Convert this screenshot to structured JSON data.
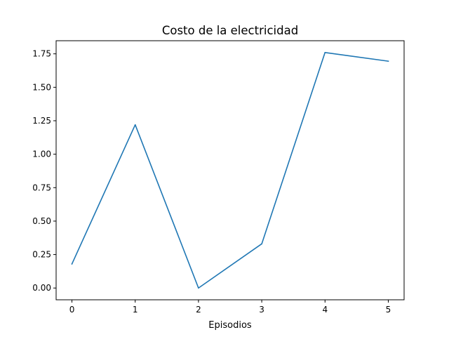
{
  "chart_data": {
    "type": "line",
    "title": "Costo de la electricidad",
    "xlabel": "Episodios",
    "ylabel": "",
    "x": [
      0,
      1,
      2,
      3,
      4,
      5
    ],
    "series": [
      {
        "values": [
          0.18,
          1.22,
          0.0,
          0.33,
          1.76,
          1.695
        ],
        "color": "#1f77b4"
      }
    ],
    "xlim": [
      -0.25,
      5.25
    ],
    "ylim": [
      -0.088,
      1.848
    ],
    "xticks": [
      0,
      1,
      2,
      3,
      4,
      5
    ],
    "xtick_labels": [
      "0",
      "1",
      "2",
      "3",
      "4",
      "5"
    ],
    "yticks": [
      0.0,
      0.25,
      0.5,
      0.75,
      1.0,
      1.25,
      1.5,
      1.75
    ],
    "ytick_labels": [
      "0.00",
      "0.25",
      "0.50",
      "0.75",
      "1.00",
      "1.25",
      "1.50",
      "1.75"
    ],
    "grid": false,
    "legend": "none"
  }
}
